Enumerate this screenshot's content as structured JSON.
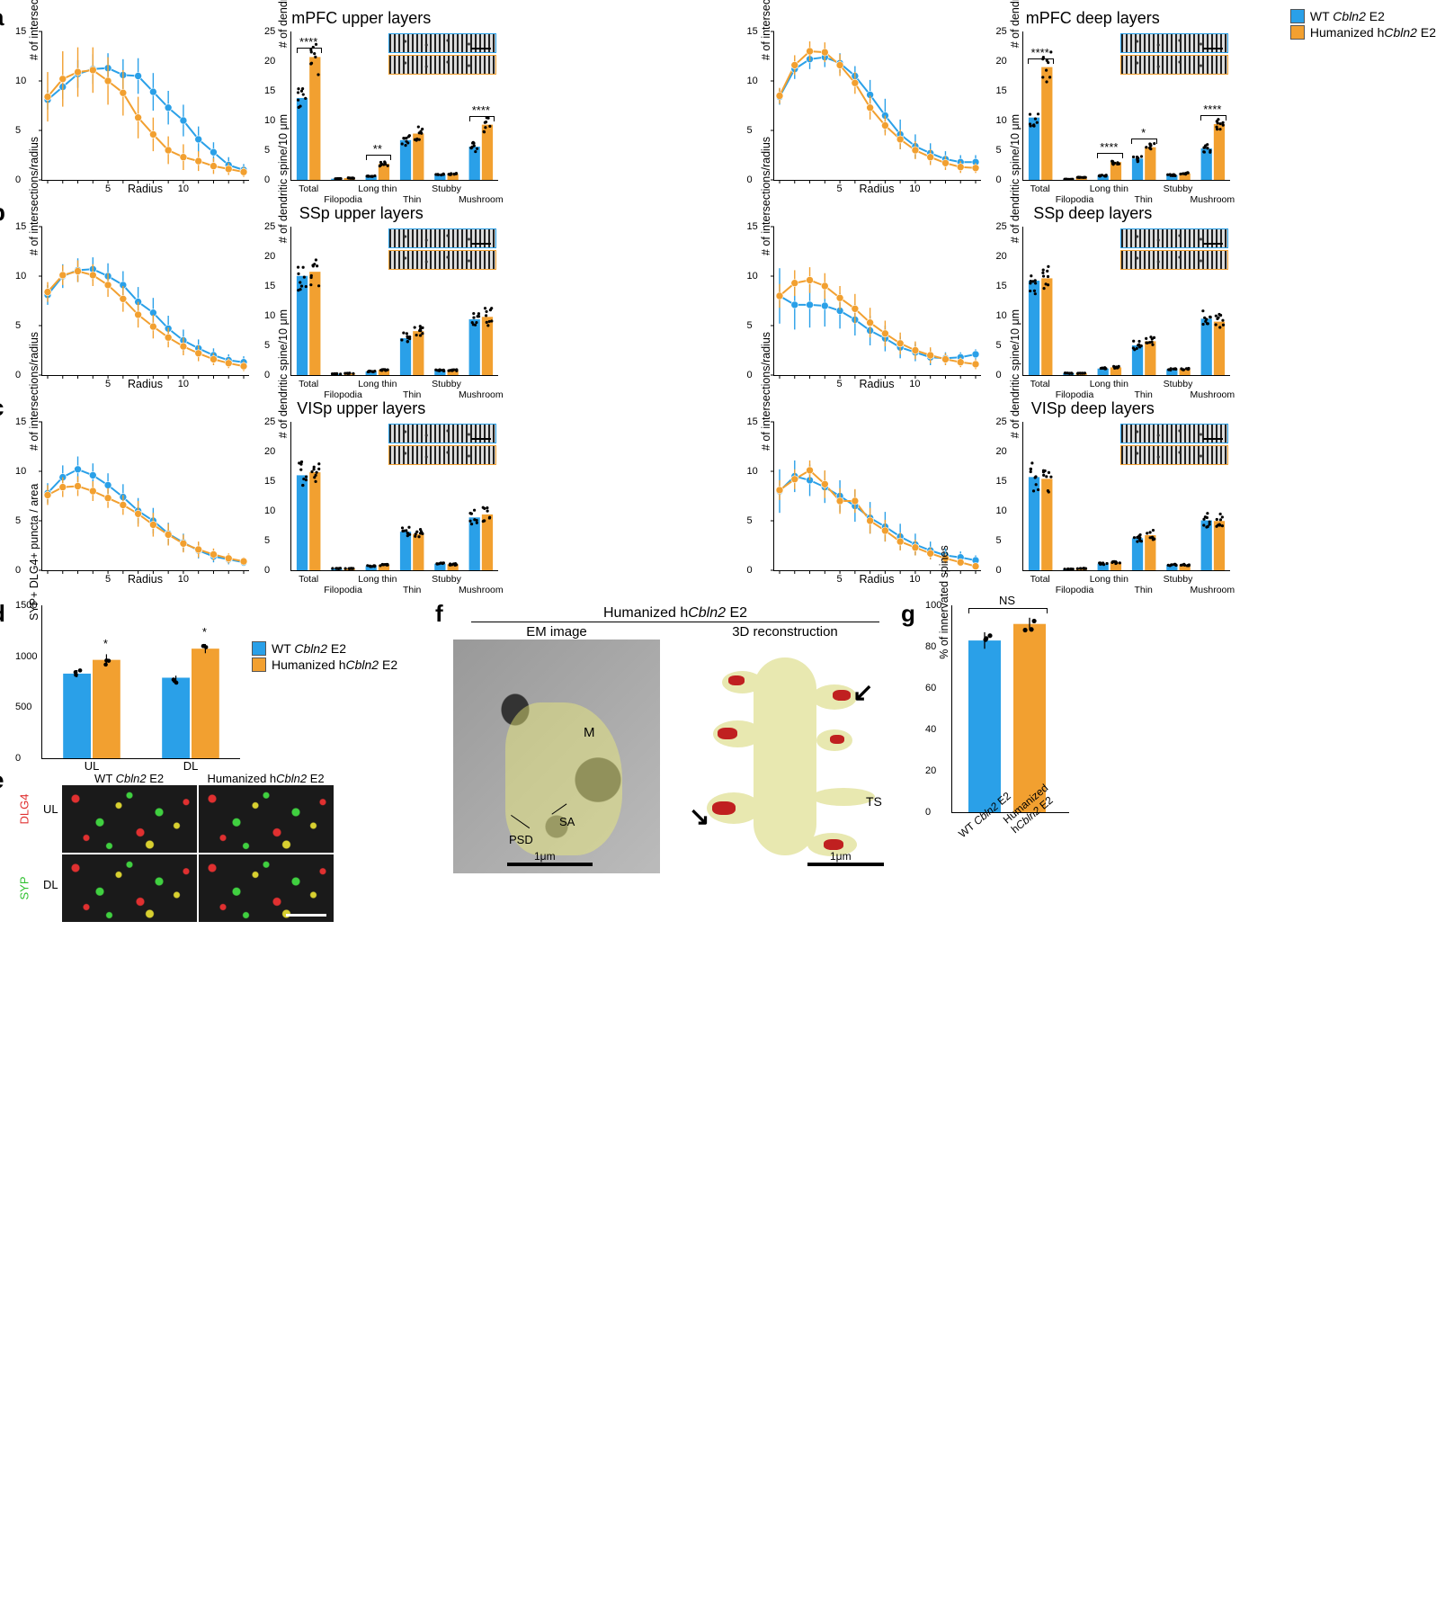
{
  "colors": {
    "wt": "#2aa0e8",
    "hum": "#f2a030",
    "grid": "#e0e0e0",
    "bg": "#ffffff"
  },
  "legend": {
    "wt": "WT Cbln2 E2",
    "hum": "Humanized hCbln2 E2",
    "wt_html": "WT <i>Cbln2</i> E2",
    "hum_html": "Humanized h<i>Cbln2</i> E2"
  },
  "axes": {
    "line_y": "# of intersections/radius",
    "line_x": "Radius",
    "bar_y": "# of dendritic spine/10 μm",
    "line_ymax": 15,
    "line_ytick": 5,
    "bar_ymax": 25,
    "bar_ytick": 5,
    "line_xmax": 14,
    "line_xtick": 5
  },
  "bar_categories_top": [
    "Total",
    "",
    "Long thin",
    "",
    "Stubby",
    ""
  ],
  "bar_categories_bot": [
    "",
    "Filopodia",
    "",
    "Thin",
    "",
    "Mushroom"
  ],
  "panels": {
    "a_ul": {
      "title": "mPFC upper layers",
      "line_wt": [
        8.1,
        9.4,
        10.7,
        11.2,
        11.3,
        10.6,
        10.5,
        8.9,
        7.3,
        6.0,
        4.1,
        2.8,
        1.5,
        1.0
      ],
      "line_hum": [
        8.4,
        10.2,
        10.9,
        11.1,
        10.0,
        8.8,
        6.3,
        4.6,
        3.0,
        2.3,
        1.9,
        1.4,
        1.1,
        0.8
      ],
      "err_wt": [
        1.0,
        1.2,
        1.4,
        1.5,
        1.5,
        1.6,
        1.8,
        1.9,
        1.7,
        1.6,
        1.3,
        1.0,
        0.8,
        0.6
      ],
      "err_hum": [
        2.5,
        2.8,
        2.5,
        2.3,
        2.4,
        2.3,
        2.1,
        1.7,
        1.4,
        1.3,
        1.0,
        0.8,
        0.6,
        0.5
      ],
      "bars_wt": [
        13.8,
        0.2,
        0.6,
        6.7,
        0.9,
        5.6
      ],
      "bars_hum": [
        20.7,
        0.3,
        2.7,
        7.8,
        1.0,
        9.3
      ],
      "sig": {
        "Total": "****",
        "Long thin": "**",
        "Mushroom": "****"
      }
    },
    "a_dl": {
      "title": "mPFC deep layers",
      "line_wt": [
        8.4,
        11.2,
        12.2,
        12.4,
        11.8,
        10.5,
        8.6,
        6.5,
        4.6,
        3.4,
        2.7,
        2.1,
        1.8,
        1.8
      ],
      "line_hum": [
        8.5,
        11.6,
        13.0,
        12.9,
        11.6,
        9.8,
        7.3,
        5.5,
        4.1,
        3.0,
        2.3,
        1.7,
        1.3,
        1.2
      ],
      "err_wt": [
        0.8,
        1.0,
        1.0,
        1.0,
        1.0,
        1.0,
        1.5,
        1.7,
        1.5,
        1.2,
        1.0,
        0.8,
        0.7,
        0.7
      ],
      "err_hum": [
        0.8,
        1.0,
        1.0,
        1.0,
        1.1,
        1.1,
        1.2,
        1.0,
        1.0,
        0.9,
        0.8,
        0.7,
        0.6,
        0.5
      ],
      "bars_wt": [
        10.5,
        0.1,
        0.7,
        3.6,
        0.8,
        5.3
      ],
      "bars_hum": [
        19.0,
        0.4,
        3.0,
        5.5,
        1.1,
        9.4
      ],
      "sig": {
        "Total": "****",
        "Long thin": "****",
        "Thin": "*",
        "Mushroom": "****"
      }
    },
    "b_ul": {
      "title": "SSp upper layers",
      "line_wt": [
        8.1,
        10.0,
        10.6,
        10.7,
        10.0,
        9.1,
        7.4,
        6.3,
        4.7,
        3.5,
        2.7,
        2.0,
        1.5,
        1.3
      ],
      "line_hum": [
        8.4,
        10.1,
        10.5,
        10.1,
        9.1,
        7.7,
        6.1,
        4.9,
        3.8,
        2.9,
        2.2,
        1.6,
        1.2,
        0.9
      ],
      "err_wt": [
        1.0,
        1.2,
        1.2,
        1.2,
        1.3,
        1.4,
        1.5,
        1.5,
        1.3,
        1.1,
        0.9,
        0.7,
        0.6,
        0.6
      ],
      "err_hum": [
        1.0,
        1.0,
        1.1,
        1.1,
        1.2,
        1.3,
        1.3,
        1.2,
        1.0,
        0.9,
        0.8,
        0.6,
        0.5,
        0.5
      ],
      "bars_wt": [
        16.7,
        0.2,
        0.6,
        6.2,
        0.8,
        9.4
      ],
      "bars_hum": [
        17.4,
        0.3,
        0.9,
        7.4,
        0.8,
        9.8
      ],
      "sig": {}
    },
    "b_dl": {
      "title": "SSp deep layers",
      "line_wt": [
        8.0,
        7.1,
        7.1,
        7.0,
        6.5,
        5.6,
        4.5,
        3.7,
        2.8,
        2.3,
        1.8,
        1.7,
        1.8,
        2.1
      ],
      "line_hum": [
        8.0,
        9.3,
        9.6,
        9.0,
        7.8,
        6.7,
        5.3,
        4.2,
        3.2,
        2.5,
        2.0,
        1.6,
        1.3,
        1.1
      ],
      "err_wt": [
        2.8,
        2.5,
        2.3,
        2.1,
        1.8,
        1.6,
        1.5,
        1.3,
        1.1,
        0.9,
        0.8,
        0.6,
        0.5,
        0.5
      ],
      "err_hum": [
        1.2,
        1.3,
        1.3,
        1.3,
        1.2,
        1.5,
        1.5,
        1.3,
        1.1,
        0.9,
        0.8,
        0.6,
        0.5,
        0.5
      ],
      "bars_wt": [
        15.9,
        0.3,
        1.1,
        5.0,
        1.0,
        9.5
      ],
      "bars_hum": [
        16.3,
        0.3,
        1.3,
        5.7,
        1.0,
        9.0
      ],
      "sig": {}
    },
    "c_ul": {
      "title": "VISp upper layers",
      "line_wt": [
        7.8,
        9.4,
        10.2,
        9.6,
        8.6,
        7.4,
        6.0,
        5.0,
        3.7,
        2.8,
        2.0,
        1.4,
        1.1,
        0.8
      ],
      "line_hum": [
        7.6,
        8.4,
        8.5,
        8.0,
        7.3,
        6.6,
        5.7,
        4.6,
        3.6,
        2.7,
        2.1,
        1.6,
        1.2,
        0.9
      ],
      "err_wt": [
        1.0,
        1.2,
        1.3,
        1.2,
        1.2,
        1.3,
        1.3,
        1.3,
        1.1,
        0.9,
        0.8,
        0.6,
        0.5,
        0.4
      ],
      "err_hum": [
        1.0,
        1.0,
        1.0,
        1.0,
        1.0,
        1.0,
        1.3,
        1.2,
        1.1,
        0.9,
        0.8,
        0.6,
        0.5,
        0.4
      ],
      "bars_wt": [
        16.0,
        0.3,
        0.7,
        6.5,
        1.1,
        8.9
      ],
      "bars_hum": [
        16.5,
        0.3,
        0.9,
        6.1,
        1.0,
        9.4
      ],
      "sig": {}
    },
    "c_dl": {
      "title": "VISp deep layers",
      "line_wt": [
        8.0,
        9.5,
        9.1,
        8.4,
        7.5,
        6.5,
        5.3,
        4.4,
        3.4,
        2.6,
        2.0,
        1.5,
        1.3,
        1.0
      ],
      "line_hum": [
        8.1,
        9.2,
        10.1,
        8.7,
        7.0,
        7.0,
        5.0,
        4.0,
        2.9,
        2.3,
        1.7,
        1.2,
        0.8,
        0.4
      ],
      "err_wt": [
        2.2,
        1.6,
        1.6,
        1.6,
        1.6,
        1.6,
        1.6,
        1.5,
        1.3,
        1.1,
        0.9,
        0.7,
        0.6,
        0.5
      ],
      "err_hum": [
        1.0,
        1.0,
        1.0,
        1.4,
        1.3,
        1.2,
        1.3,
        1.1,
        0.9,
        0.8,
        0.6,
        0.5,
        0.4,
        0.3
      ],
      "bars_wt": [
        15.7,
        0.2,
        1.1,
        5.4,
        0.9,
        8.4
      ],
      "bars_hum": [
        15.4,
        0.3,
        1.3,
        5.9,
        0.9,
        8.3
      ],
      "sig": {}
    }
  },
  "panel_d": {
    "y_label": "SYP+ DLG4+ puncta / area",
    "ymax": 1500,
    "ytick": 500,
    "cats": [
      "UL",
      "DL"
    ],
    "wt": [
      830,
      790
    ],
    "hum": [
      965,
      1075
    ],
    "err_wt": [
      35,
      20
    ],
    "err_hum": [
      55,
      45
    ],
    "sig": [
      "*",
      "*"
    ]
  },
  "panel_e": {
    "col_wt": "WT Cbln2 E2",
    "col_hum": "Humanized hCbln2 E2",
    "rows": [
      "UL",
      "DL"
    ],
    "channel1": "SYP",
    "channel1_color": "#30c030",
    "channel2": "DLG4",
    "channel2_color": "#e03030",
    "scalebar_um": ""
  },
  "panel_f": {
    "title": "Humanized hCbln2 E2",
    "left": "EM image",
    "right": "3D reconstruction",
    "labels": {
      "M": "M",
      "PSD": "PSD",
      "SA": "SA",
      "TS": "TS"
    },
    "scalebar": "1μm"
  },
  "panel_g": {
    "y_label": "% of innervated spines",
    "ymax": 100,
    "ytick": 20,
    "wt": 83,
    "hum": 91,
    "err_wt": 4,
    "err_hum": 3,
    "sig": "NS",
    "x_wt": "WT Cbln2 E2",
    "x_hum": "Humanized hCbln2 E2"
  }
}
